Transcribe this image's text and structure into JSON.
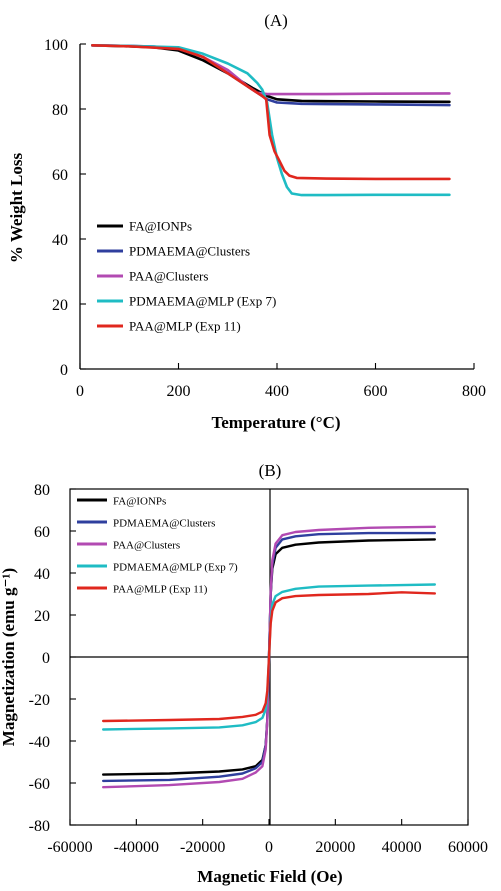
{
  "chart_data": [
    {
      "type": "line",
      "title": "(A)",
      "xlabel": "Temperature (°C)",
      "ylabel": "% Weight Loss",
      "xlim": [
        0,
        800
      ],
      "ylim": [
        0,
        100
      ],
      "x_ticks": [
        "0",
        "200",
        "400",
        "600",
        "800"
      ],
      "y_ticks": [
        "0",
        "20",
        "40",
        "60",
        "80",
        "100"
      ],
      "grid": false,
      "legend_position": "lower-left",
      "series": [
        {
          "name": "FA@IONPs",
          "color": "#000000",
          "points": [
            [
              25,
              99.6
            ],
            [
              100,
              99.3
            ],
            [
              150,
              99.0
            ],
            [
              200,
              98.0
            ],
            [
              250,
              95.0
            ],
            [
              300,
              91.0
            ],
            [
              350,
              86.5
            ],
            [
              380,
              84.0
            ],
            [
              400,
              83.0
            ],
            [
              450,
              82.5
            ],
            [
              500,
              82.4
            ],
            [
              600,
              82.3
            ],
            [
              750,
              82.2
            ]
          ]
        },
        {
          "name": "PDMAEMA@Clusters",
          "color": "#2f3f9e",
          "points": [
            [
              25,
              99.6
            ],
            [
              100,
              99.4
            ],
            [
              150,
              99.2
            ],
            [
              200,
              98.5
            ],
            [
              250,
              96.0
            ],
            [
              300,
              91.0
            ],
            [
              350,
              86.0
            ],
            [
              380,
              83.0
            ],
            [
              400,
              82.0
            ],
            [
              450,
              81.6
            ],
            [
              500,
              81.5
            ],
            [
              600,
              81.4
            ],
            [
              750,
              81.2
            ]
          ]
        },
        {
          "name": "PAA@Clusters",
          "color": "#b24ab2",
          "points": [
            [
              25,
              99.6
            ],
            [
              100,
              99.4
            ],
            [
              200,
              98.8
            ],
            [
              250,
              96.0
            ],
            [
              300,
              92.0
            ],
            [
              340,
              87.0
            ],
            [
              360,
              85.0
            ],
            [
              380,
              84.6
            ],
            [
              400,
              84.6
            ],
            [
              500,
              84.6
            ],
            [
              600,
              84.7
            ],
            [
              750,
              84.8
            ]
          ]
        },
        {
          "name": "PDMAEMA@MLP (Exp 7)",
          "color": "#1fbcc4",
          "points": [
            [
              25,
              99.6
            ],
            [
              100,
              99.4
            ],
            [
              200,
              99.0
            ],
            [
              250,
              97.0
            ],
            [
              300,
              94.0
            ],
            [
              340,
              91.0
            ],
            [
              360,
              88.0
            ],
            [
              370,
              86.0
            ],
            [
              380,
              82.0
            ],
            [
              390,
              72.0
            ],
            [
              400,
              65.0
            ],
            [
              410,
              60.0
            ],
            [
              420,
              56.0
            ],
            [
              430,
              54.0
            ],
            [
              450,
              53.5
            ],
            [
              500,
              53.5
            ],
            [
              600,
              53.6
            ],
            [
              750,
              53.6
            ]
          ]
        },
        {
          "name": "PAA@MLP (Exp 11)",
          "color": "#e0271e",
          "points": [
            [
              25,
              99.6
            ],
            [
              100,
              99.3
            ],
            [
              200,
              98.5
            ],
            [
              250,
              96.0
            ],
            [
              300,
              91.0
            ],
            [
              340,
              87.0
            ],
            [
              360,
              85.0
            ],
            [
              370,
              84.0
            ],
            [
              378,
              83.0
            ],
            [
              385,
              72.0
            ],
            [
              395,
              67.0
            ],
            [
              405,
              64.0
            ],
            [
              415,
              61.0
            ],
            [
              425,
              59.5
            ],
            [
              440,
              58.8
            ],
            [
              500,
              58.6
            ],
            [
              600,
              58.5
            ],
            [
              750,
              58.5
            ]
          ]
        }
      ]
    },
    {
      "type": "line",
      "title": "(B)",
      "xlabel": "Magnetic Field (Oe)",
      "ylabel": "Magnetization (emu g⁻¹)",
      "xlim": [
        -60000,
        60000
      ],
      "ylim": [
        -80,
        80
      ],
      "x_ticks": [
        "-60000",
        "-40000",
        "-20000",
        "0",
        "20000",
        "40000",
        "60000"
      ],
      "y_ticks": [
        "-80",
        "-60",
        "-40",
        "-20",
        "0",
        "20",
        "40",
        "60",
        "80"
      ],
      "grid": false,
      "legend_position": "top-left",
      "series": [
        {
          "name": "FA@IONPs",
          "color": "#000000",
          "points": [
            [
              -50000,
              -56
            ],
            [
              -30000,
              -55.5
            ],
            [
              -15000,
              -54.5
            ],
            [
              -8000,
              -53.5
            ],
            [
              -4000,
              -52
            ],
            [
              -2000,
              -49
            ],
            [
              -1000,
              -42
            ],
            [
              -500,
              -30
            ],
            [
              0,
              0
            ],
            [
              500,
              30
            ],
            [
              1000,
              42
            ],
            [
              2000,
              49
            ],
            [
              4000,
              52
            ],
            [
              8000,
              53.5
            ],
            [
              15000,
              54.5
            ],
            [
              30000,
              55.5
            ],
            [
              50000,
              56
            ]
          ]
        },
        {
          "name": "PDMAEMA@Clusters",
          "color": "#2f3f9e",
          "points": [
            [
              -50000,
              -59
            ],
            [
              -30000,
              -58.5
            ],
            [
              -15000,
              -57
            ],
            [
              -8000,
              -55.5
            ],
            [
              -4000,
              -53
            ],
            [
              -2000,
              -50
            ],
            [
              -1000,
              -42
            ],
            [
              -500,
              -30
            ],
            [
              0,
              0
            ],
            [
              500,
              30
            ],
            [
              1000,
              44
            ],
            [
              2000,
              52
            ],
            [
              4000,
              56
            ],
            [
              8000,
              57.5
            ],
            [
              15000,
              58.5
            ],
            [
              30000,
              59
            ],
            [
              50000,
              59
            ]
          ]
        },
        {
          "name": "PAA@Clusters",
          "color": "#b24ab2",
          "points": [
            [
              -50000,
              -62
            ],
            [
              -30000,
              -61
            ],
            [
              -15000,
              -59.5
            ],
            [
              -8000,
              -58
            ],
            [
              -4000,
              -55
            ],
            [
              -2000,
              -52
            ],
            [
              -1000,
              -44
            ],
            [
              -500,
              -31
            ],
            [
              0,
              0
            ],
            [
              500,
              31
            ],
            [
              1000,
              46
            ],
            [
              2000,
              54
            ],
            [
              4000,
              58
            ],
            [
              8000,
              59.5
            ],
            [
              15000,
              60.5
            ],
            [
              30000,
              61.5
            ],
            [
              50000,
              62
            ]
          ]
        },
        {
          "name": "PDMAEMA@MLP (Exp 7)",
          "color": "#1fbcc4",
          "points": [
            [
              -50000,
              -34.5
            ],
            [
              -30000,
              -34
            ],
            [
              -15000,
              -33.5
            ],
            [
              -8000,
              -32.5
            ],
            [
              -4000,
              -31
            ],
            [
              -2000,
              -29
            ],
            [
              -1000,
              -25
            ],
            [
              -500,
              -18
            ],
            [
              0,
              0
            ],
            [
              500,
              18
            ],
            [
              1000,
              25
            ],
            [
              2000,
              29
            ],
            [
              4000,
              31
            ],
            [
              8000,
              32.5
            ],
            [
              15000,
              33.5
            ],
            [
              30000,
              34
            ],
            [
              50000,
              34.5
            ]
          ]
        },
        {
          "name": "PAA@MLP (Exp 11)",
          "color": "#e0271e",
          "points": [
            [
              -50000,
              -30.5
            ],
            [
              -30000,
              -30
            ],
            [
              -15000,
              -29.5
            ],
            [
              -8000,
              -28.5
            ],
            [
              -4000,
              -27.5
            ],
            [
              -2000,
              -26
            ],
            [
              -1000,
              -22
            ],
            [
              -500,
              -16
            ],
            [
              0,
              0
            ],
            [
              500,
              16
            ],
            [
              1000,
              22
            ],
            [
              2000,
              26
            ],
            [
              4000,
              28
            ],
            [
              8000,
              29
            ],
            [
              15000,
              29.5
            ],
            [
              30000,
              30
            ],
            [
              40000,
              30.8
            ],
            [
              50000,
              30.3
            ]
          ]
        }
      ]
    }
  ]
}
